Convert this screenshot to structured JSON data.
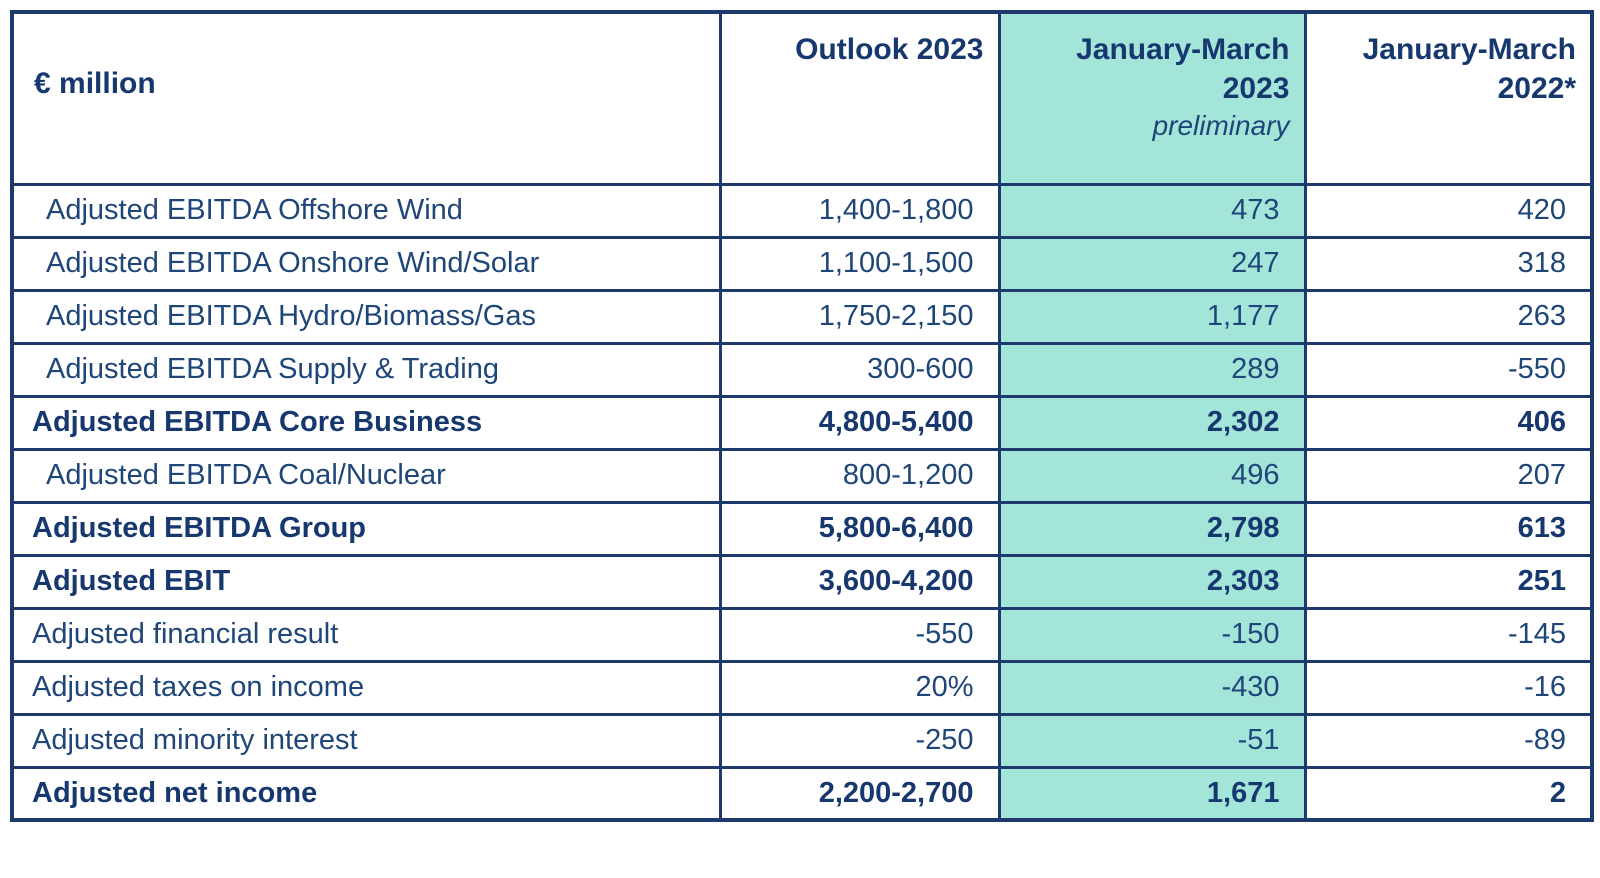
{
  "colors": {
    "text_navy": "#1F4679",
    "text_navy_bold": "#17386E",
    "border_navy": "#1C3A6B",
    "highlight_teal": "#A3E5D9",
    "background": "#FFFFFF"
  },
  "table": {
    "unit_label": "€ million",
    "columns": [
      {
        "title": "Outlook 2023",
        "highlighted": false
      },
      {
        "title": "January-March 2023",
        "subtitle": "preliminary",
        "highlighted": true
      },
      {
        "title": "January-March 2022*",
        "highlighted": false
      }
    ],
    "rows": [
      {
        "label": "Adjusted EBITDA Offshore Wind",
        "outlook_2023": "1,400-1,800",
        "jan_mar_2023": "473",
        "jan_mar_2022": "420",
        "bold": false,
        "indent": true
      },
      {
        "label": "Adjusted EBITDA Onshore Wind/Solar",
        "outlook_2023": "1,100-1,500",
        "jan_mar_2023": "247",
        "jan_mar_2022": "318",
        "bold": false,
        "indent": true
      },
      {
        "label": "Adjusted EBITDA Hydro/Biomass/Gas",
        "outlook_2023": "1,750-2,150",
        "jan_mar_2023": "1,177",
        "jan_mar_2022": "263",
        "bold": false,
        "indent": true
      },
      {
        "label": "Adjusted EBITDA Supply & Trading",
        "outlook_2023": "300-600",
        "jan_mar_2023": "289",
        "jan_mar_2022": "-550",
        "bold": false,
        "indent": true
      },
      {
        "label": "Adjusted EBITDA Core Business",
        "outlook_2023": "4,800-5,400",
        "jan_mar_2023": "2,302",
        "jan_mar_2022": "406",
        "bold": true,
        "indent": false
      },
      {
        "label": "Adjusted EBITDA Coal/Nuclear",
        "outlook_2023": "800-1,200",
        "jan_mar_2023": "496",
        "jan_mar_2022": "207",
        "bold": false,
        "indent": true
      },
      {
        "label": "Adjusted EBITDA Group",
        "outlook_2023": "5,800-6,400",
        "jan_mar_2023": "2,798",
        "jan_mar_2022": "613",
        "bold": true,
        "indent": false
      },
      {
        "label": "Adjusted EBIT",
        "outlook_2023": "3,600-4,200",
        "jan_mar_2023": "2,303",
        "jan_mar_2022": "251",
        "bold": true,
        "indent": false
      },
      {
        "label": "Adjusted financial result",
        "outlook_2023": "-550",
        "jan_mar_2023": "-150",
        "jan_mar_2022": "-145",
        "bold": false,
        "indent": false
      },
      {
        "label": "Adjusted taxes on income",
        "outlook_2023": "20%",
        "jan_mar_2023": "-430",
        "jan_mar_2022": "-16",
        "bold": false,
        "indent": false
      },
      {
        "label": "Adjusted minority interest",
        "outlook_2023": "-250",
        "jan_mar_2023": "-51",
        "jan_mar_2022": "-89",
        "bold": false,
        "indent": false
      },
      {
        "label": "Adjusted net income",
        "outlook_2023": "2,200-2,700",
        "jan_mar_2023": "1,671",
        "jan_mar_2022": "2",
        "bold": true,
        "indent": false
      }
    ]
  }
}
